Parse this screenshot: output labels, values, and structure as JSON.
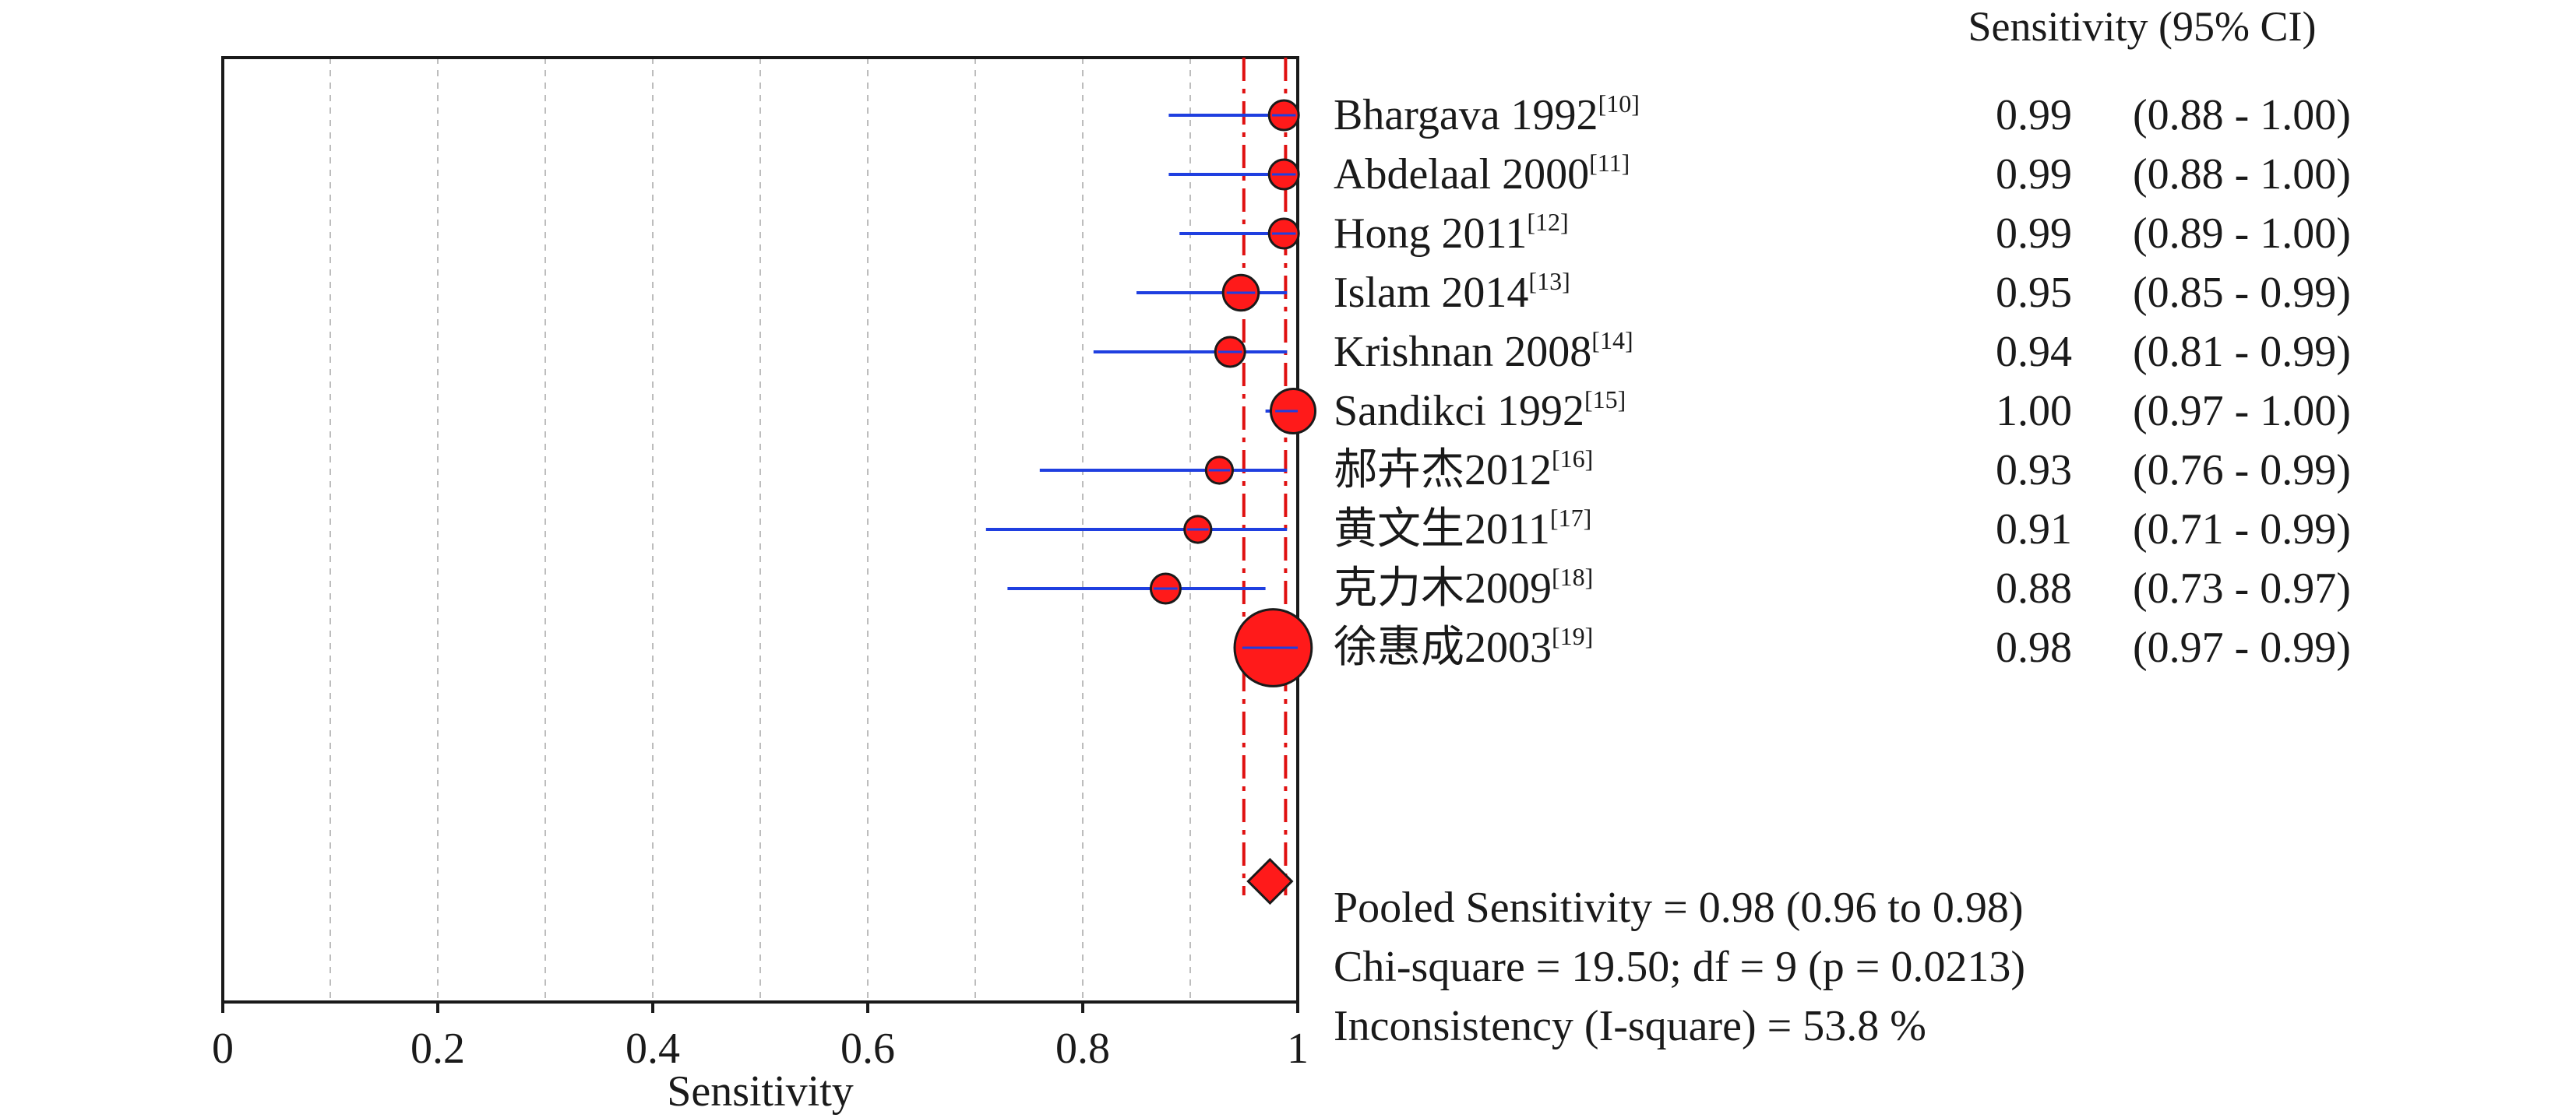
{
  "chart_data": {
    "type": "forest",
    "column_header": "Sensitivity (95% CI)",
    "xlabel": "Sensitivity",
    "xlim": [
      0,
      1
    ],
    "x_ticks": [
      {
        "value": 0,
        "label": "0"
      },
      {
        "value": 0.2,
        "label": "0.2"
      },
      {
        "value": 0.4,
        "label": "0.4"
      },
      {
        "value": 0.6,
        "label": "0.6"
      },
      {
        "value": 0.8,
        "label": "0.8"
      },
      {
        "value": 1,
        "label": "1"
      }
    ],
    "gridlines_x": [
      0.1,
      0.2,
      0.3,
      0.4,
      0.5,
      0.6,
      0.7,
      0.8,
      0.9
    ],
    "studies": [
      {
        "name": "Bhargava 1992",
        "ref": "[10]",
        "estimate": 0.99,
        "lower": 0.88,
        "upper": 1.0,
        "estimate_text": "0.99",
        "ci_text": "(0.88 - 1.00)",
        "weight": 1.0
      },
      {
        "name": "Abdelaal 2000",
        "ref": "[11]",
        "estimate": 0.99,
        "lower": 0.88,
        "upper": 1.0,
        "estimate_text": "0.99",
        "ci_text": "(0.88 - 1.00)",
        "weight": 1.0
      },
      {
        "name": "Hong 2011",
        "ref": "[12]",
        "estimate": 0.99,
        "lower": 0.89,
        "upper": 1.0,
        "estimate_text": "0.99",
        "ci_text": "(0.89 - 1.00)",
        "weight": 1.0
      },
      {
        "name": "Islam 2014",
        "ref": "[13]",
        "estimate": 0.95,
        "lower": 0.85,
        "upper": 0.99,
        "estimate_text": "0.95",
        "ci_text": "(0.85 - 0.99)",
        "weight": 1.2
      },
      {
        "name": "Krishnan 2008",
        "ref": "[14]",
        "estimate": 0.94,
        "lower": 0.81,
        "upper": 0.99,
        "estimate_text": "0.94",
        "ci_text": "(0.81 - 0.99)",
        "weight": 1.0
      },
      {
        "name": "Sandikci 1992",
        "ref": "[15]",
        "estimate": 1.0,
        "lower": 0.97,
        "upper": 1.0,
        "estimate_text": "1.00",
        "ci_text": "(0.97 - 1.00)",
        "weight": 1.5
      },
      {
        "name": "郝卉杰2012",
        "ref": "[16]",
        "estimate": 0.93,
        "lower": 0.76,
        "upper": 0.99,
        "estimate_text": "0.93",
        "ci_text": "(0.76 - 0.99)",
        "weight": 0.9
      },
      {
        "name": "黄文生2011",
        "ref": "[17]",
        "estimate": 0.91,
        "lower": 0.71,
        "upper": 0.99,
        "estimate_text": "0.91",
        "ci_text": "(0.71 - 0.99)",
        "weight": 0.9
      },
      {
        "name": "克力木2009",
        "ref": "[18]",
        "estimate": 0.88,
        "lower": 0.73,
        "upper": 0.97,
        "estimate_text": "0.88",
        "ci_text": "(0.73 - 0.97)",
        "weight": 1.0
      },
      {
        "name": "徐惠成2003",
        "ref": "[19]",
        "estimate": 0.98,
        "lower": 0.97,
        "upper": 0.99,
        "estimate_text": "0.98",
        "ci_text": "(0.97 - 0.99)",
        "weight": 2.6
      }
    ],
    "pooled": {
      "estimate": 0.98,
      "lower": 0.96,
      "upper": 0.98
    },
    "summary_lines": [
      "Pooled Sensitivity = 0.98 (0.96 to 0.98)",
      "Chi-square = 19.50; df =  9 (p = 0.0213)",
      "Inconsistency (I-square) = 53.8 %"
    ],
    "colors": {
      "marker": "#ff1a1a",
      "ci_line": "#1f3fe0",
      "pooled_line": "#e01010",
      "grid": "#bdbdbd",
      "axis": "#1a1a1a"
    }
  }
}
